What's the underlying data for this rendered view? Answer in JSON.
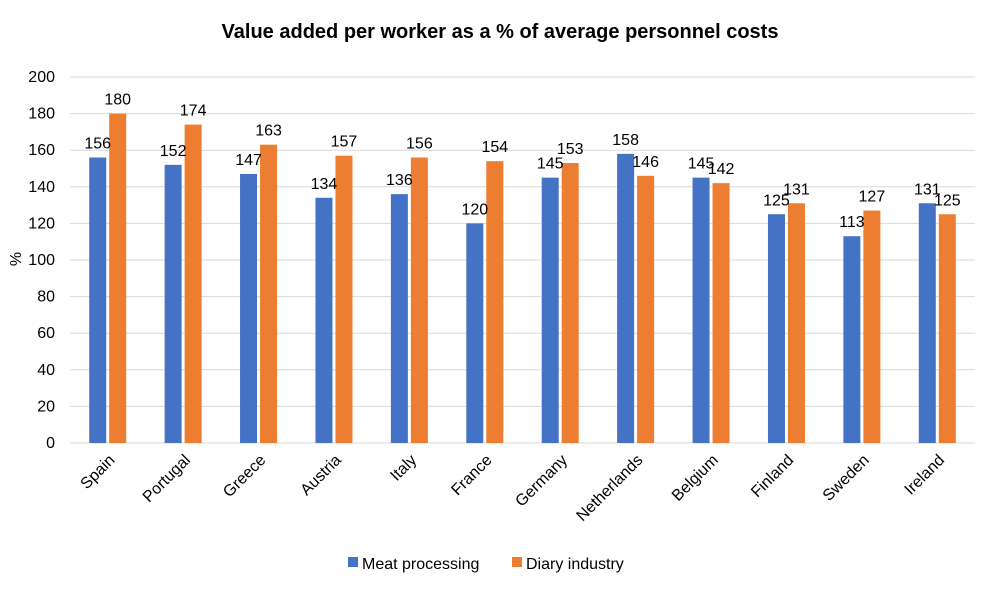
{
  "chart_data": {
    "type": "bar",
    "title": "Value added per worker as a % of average personnel costs",
    "xlabel": "",
    "ylabel": "%",
    "ylim": [
      0,
      200
    ],
    "yticks": [
      0,
      20,
      40,
      60,
      80,
      100,
      120,
      140,
      160,
      180,
      200
    ],
    "grid": true,
    "legend_position": "bottom",
    "categories": [
      "Spain",
      "Portugal",
      "Greece",
      "Austria",
      "Italy",
      "France",
      "Germany",
      "Netherlands",
      "Belgium",
      "Finland",
      "Sweden",
      "Ireland"
    ],
    "series": [
      {
        "name": "Meat processing",
        "color": "#4472C4",
        "values": [
          156,
          152,
          147,
          134,
          136,
          120,
          145,
          158,
          145,
          125,
          113,
          131
        ]
      },
      {
        "name": "Diary industry",
        "color": "#ED7D31",
        "values": [
          180,
          174,
          163,
          157,
          156,
          154,
          153,
          146,
          142,
          131,
          127,
          125
        ]
      }
    ]
  }
}
